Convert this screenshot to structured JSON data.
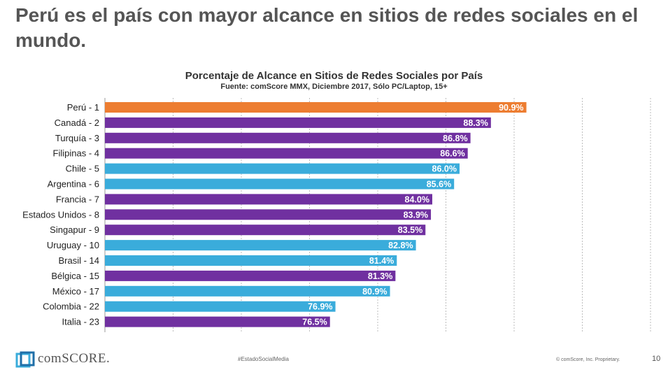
{
  "slide_title": "Perú es el país con mayor alcance en sitios de redes sociales en el mundo.",
  "chart_data": {
    "type": "bar",
    "orientation": "horizontal",
    "title": "Porcentaje de Alcance en Sitios de Redes Sociales por País",
    "subtitle": "Fuente: comScore MMX, Diciembre 2017, Sólo PC/Laptop, 15+",
    "categories": [
      "Perú - 1",
      "Canadá - 2",
      "Turquía - 3",
      "Filipinas - 4",
      "Chile - 5",
      "Argentina - 6",
      "Francia - 7",
      "Estados Unidos - 8",
      "Singapur - 9",
      "Uruguay - 10",
      "Brasil - 14",
      "Bélgica - 15",
      "México - 17",
      "Colombia - 22",
      "Italia - 23"
    ],
    "values": [
      90.9,
      88.3,
      86.8,
      86.6,
      86.0,
      85.6,
      84.0,
      83.9,
      83.5,
      82.8,
      81.4,
      81.3,
      80.9,
      76.9,
      76.5
    ],
    "data_labels": [
      "90.9%",
      "88.3%",
      "86.8%",
      "86.6%",
      "86.0%",
      "85.6%",
      "84.0%",
      "83.9%",
      "83.5%",
      "82.8%",
      "81.4%",
      "81.3%",
      "80.9%",
      "76.9%",
      "76.5%"
    ],
    "colors": [
      "#ED7D31",
      "#7030A0",
      "#7030A0",
      "#7030A0",
      "#3AACDB",
      "#3AACDB",
      "#7030A0",
      "#7030A0",
      "#7030A0",
      "#3AACDB",
      "#3AACDB",
      "#7030A0",
      "#3AACDB",
      "#3AACDB",
      "#7030A0"
    ],
    "xlim": [
      60,
      100
    ],
    "grid": "vertical-dashed",
    "legend": "none"
  },
  "footer": {
    "logo_text": "comSCORE.",
    "hashtag": "#EstadoSocialMedia",
    "copyright": "© comScore, Inc. Proprietary.",
    "page_number": "10"
  }
}
